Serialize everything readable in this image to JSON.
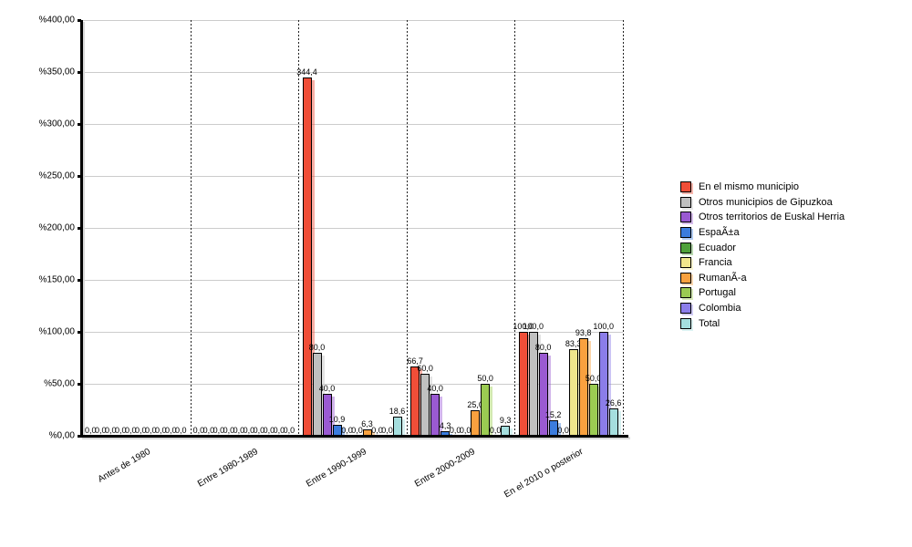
{
  "chart_data": {
    "type": "bar",
    "title": "",
    "categories": [
      "Antes de 1980",
      "Entre 1980-1989",
      "Entre 1990-1999",
      "Entre 2000-2009",
      "En el 2010 o posterior"
    ],
    "series": [
      {
        "name": "En el mismo municipio",
        "color": "#F04E38",
        "values": [
          0,
          0,
          344.4,
          66.7,
          100.0
        ]
      },
      {
        "name": "Otros municipios de Gipuzkoa",
        "color": "#C0C0C0",
        "values": [
          0,
          0,
          80.0,
          60.0,
          100.0
        ]
      },
      {
        "name": "Otros territorios de Euskal Herria",
        "color": "#9A5AD2",
        "values": [
          0,
          0,
          40.0,
          40.0,
          80.0
        ]
      },
      {
        "name": "EspaÃ±a",
        "color": "#3B7CDE",
        "values": [
          0,
          0,
          10.9,
          4.3,
          15.2
        ]
      },
      {
        "name": "Ecuador",
        "color": "#4FA13A",
        "values": [
          0,
          0,
          0,
          0,
          0
        ]
      },
      {
        "name": "Francia",
        "color": "#F0E68C",
        "values": [
          0,
          0,
          0,
          0,
          83.3
        ]
      },
      {
        "name": "RumanÃ-a",
        "color": "#F9A13F",
        "values": [
          0,
          0,
          6.3,
          25.0,
          93.8
        ]
      },
      {
        "name": "Portugal",
        "color": "#9BCB52",
        "values": [
          0,
          0,
          0,
          50.0,
          50.0
        ]
      },
      {
        "name": "Colombia",
        "color": "#8B7DE9",
        "values": [
          0,
          0,
          0,
          0,
          100.0
        ]
      },
      {
        "name": "Total",
        "color": "#A5DEDE",
        "values": [
          0,
          0,
          18.6,
          9.3,
          26.6
        ]
      }
    ],
    "ylim": [
      0,
      400
    ],
    "y_tick_step": 50,
    "y_tick_labels": [
      "%400,00",
      "%350,00",
      "%300,00",
      "%250,00",
      "%200,00",
      "%150,00",
      "%100,00",
      "%50,00",
      "%0,00"
    ],
    "value_label_decimal_separator": ",",
    "value_label_decimals": 1,
    "grid": "horizontal-solid-gray, vertical-dotted-category-separators",
    "legend_position": "right",
    "bar_outline_color": "#000000",
    "bar_shadow": true
  }
}
